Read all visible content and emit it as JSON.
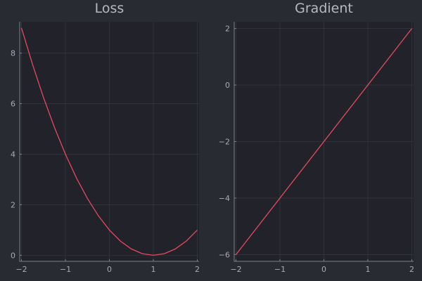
{
  "colors": {
    "background": "#292b33",
    "plot_background": "#22232a",
    "series": "#e8485f"
  },
  "chart_data": [
    {
      "type": "line",
      "title": "Loss",
      "xlabel": "",
      "ylabel": "",
      "grid": true,
      "legend": "none",
      "xlim": [
        -2.04,
        2.04
      ],
      "ylim": [
        -0.24,
        9.24
      ],
      "xticks": [
        -2,
        -1,
        0,
        1,
        2
      ],
      "xtick_labels": [
        "−2",
        "−1",
        "0",
        "1",
        "2"
      ],
      "yticks": [
        0,
        2,
        4,
        6,
        8
      ],
      "ytick_labels": [
        "0",
        "2",
        "4",
        "6",
        "8"
      ],
      "series": [
        {
          "x": [
            -2.0,
            -1.75,
            -1.5,
            -1.25,
            -1.0,
            -0.75,
            -0.5,
            -0.25,
            0.0,
            0.25,
            0.5,
            0.75,
            1.0,
            1.25,
            1.5,
            1.75,
            2.0
          ],
          "values": [
            9.0,
            7.5625,
            6.25,
            5.0625,
            4.0,
            3.0625,
            2.25,
            1.5625,
            1.0,
            0.5625,
            0.25,
            0.0625,
            0.0,
            0.0625,
            0.25,
            0.5625,
            1.0
          ]
        }
      ]
    },
    {
      "type": "line",
      "title": "Gradient",
      "xlabel": "",
      "ylabel": "",
      "grid": true,
      "legend": "none",
      "xlim": [
        -2.04,
        2.04
      ],
      "ylim": [
        -6.24,
        2.24
      ],
      "xticks": [
        -2,
        -1,
        0,
        1,
        2
      ],
      "xtick_labels": [
        "−2",
        "−1",
        "0",
        "1",
        "2"
      ],
      "yticks": [
        -6,
        -4,
        -2,
        0,
        2
      ],
      "ytick_labels": [
        "−6",
        "−4",
        "−2",
        "0",
        "2"
      ],
      "series": [
        {
          "x": [
            -2.0,
            2.0
          ],
          "values": [
            -6.0,
            2.0
          ]
        }
      ]
    }
  ]
}
